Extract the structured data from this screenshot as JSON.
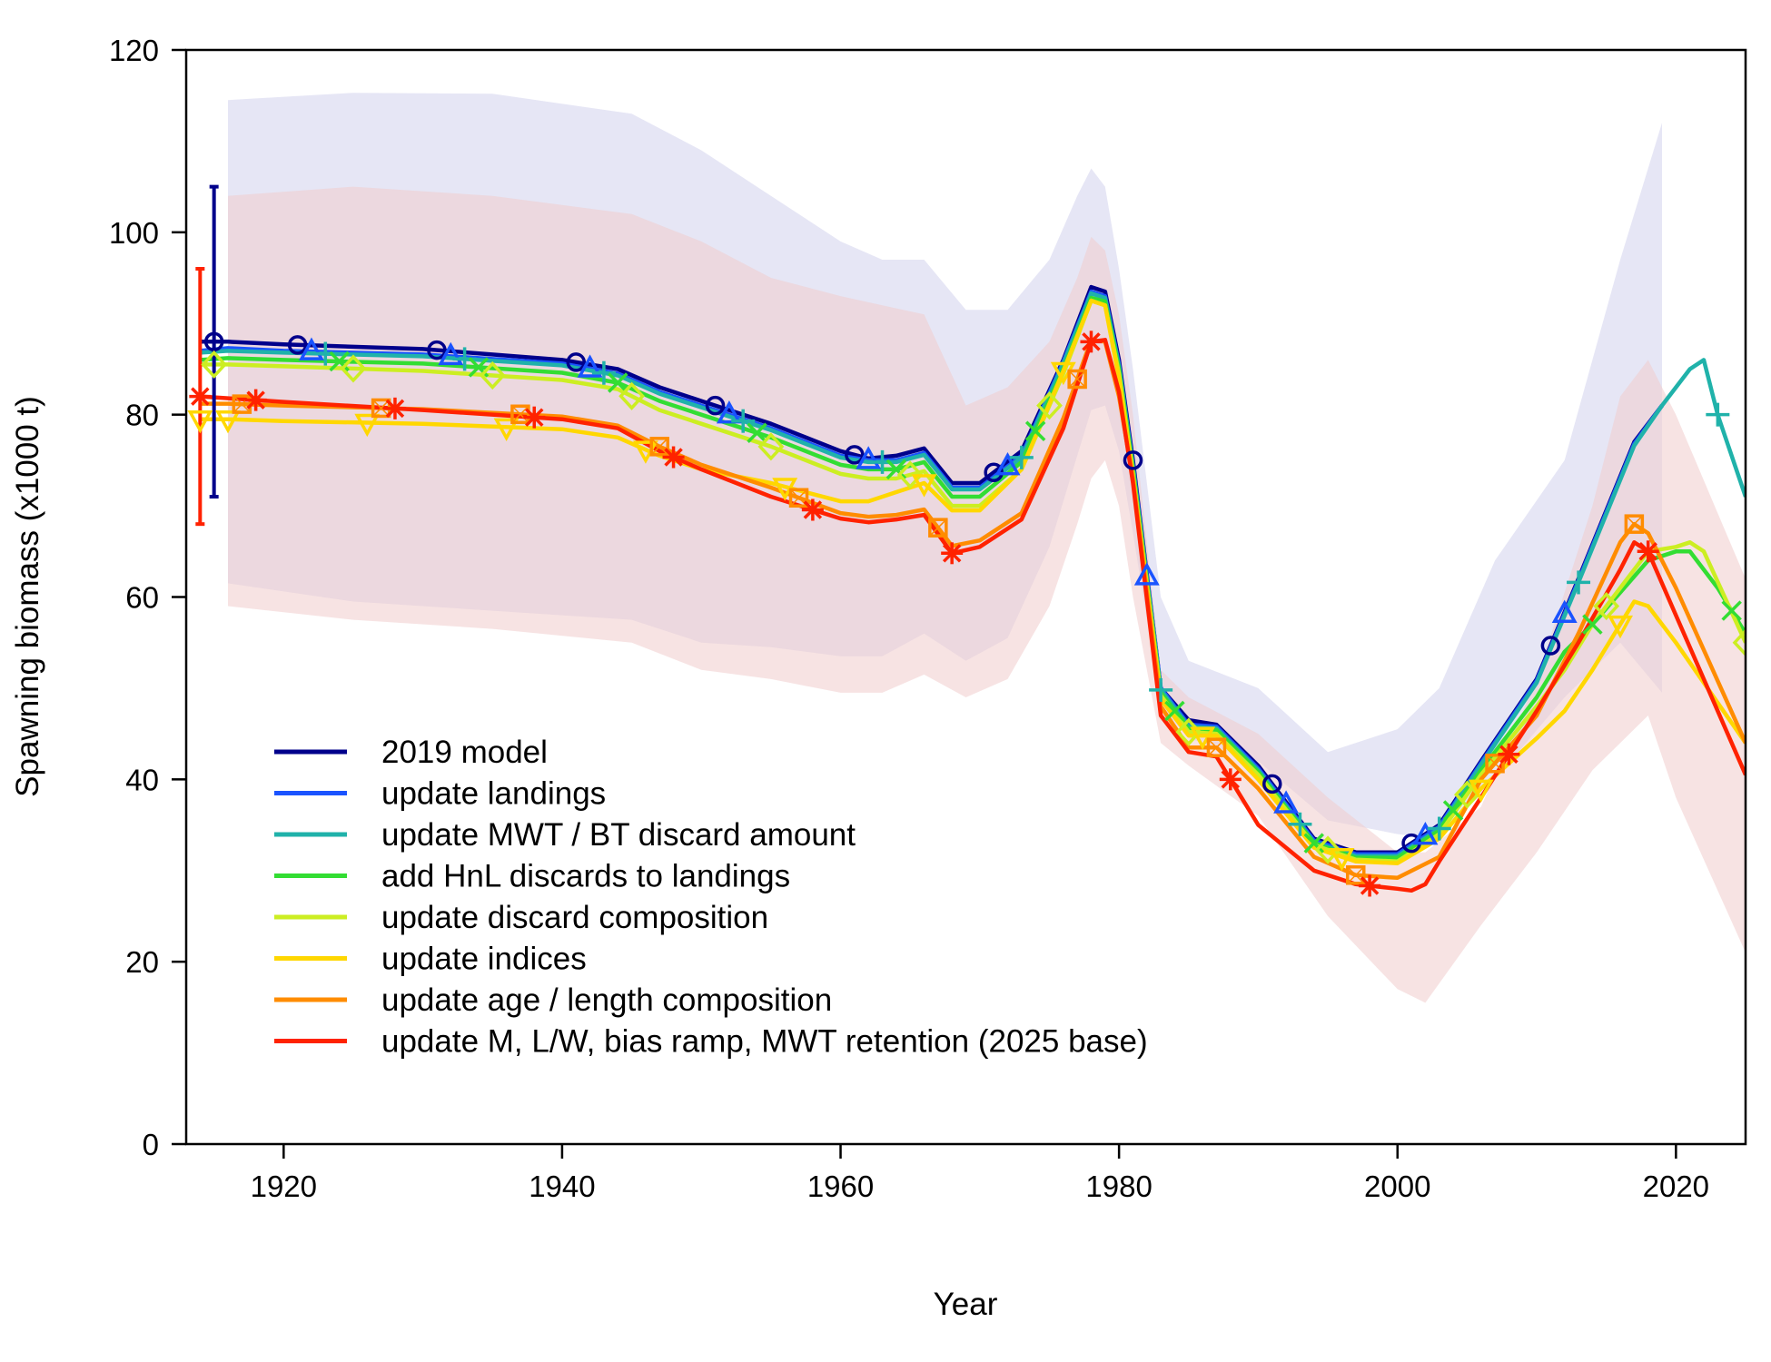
{
  "chart_data": {
    "type": "line",
    "xlabel": "Year",
    "ylabel": "Spawning biomass (x1000 t)",
    "xlim": [
      1913,
      2025
    ],
    "ylim": [
      0,
      120
    ],
    "x_ticks": [
      1920,
      1940,
      1960,
      1980,
      2000,
      2020
    ],
    "y_ticks": [
      0,
      20,
      40,
      60,
      80,
      100,
      120
    ],
    "grid": false,
    "legend_position": "bottom-left",
    "bands": [
      {
        "name": "2019 model",
        "color": "#e6e6f5",
        "x": [
          1916,
          1925,
          1935,
          1945,
          1950,
          1955,
          1960,
          1963,
          1966,
          1969,
          1972,
          1975,
          1977,
          1978,
          1979,
          1980,
          1981,
          1983,
          1985,
          1990,
          1995,
          2000,
          2003,
          2007,
          2012,
          2016,
          2019
        ],
        "upper": [
          114.5,
          115.3,
          115.2,
          113,
          109,
          104,
          99,
          97,
          97,
          91.5,
          91.5,
          97,
          104,
          107,
          105,
          96,
          85,
          60,
          53,
          50,
          43,
          45.5,
          50,
          64,
          75,
          97,
          112
        ],
        "lower": [
          61.5,
          59.5,
          58.5,
          57.5,
          55,
          54.5,
          53.5,
          53.5,
          56,
          53,
          55.5,
          65.5,
          75.5,
          80.5,
          81,
          76,
          67,
          48,
          44.5,
          42,
          35.5,
          34,
          33.5,
          40,
          49,
          55,
          49.5
        ]
      },
      {
        "name": "update M, L/W, bias ramp, MWT retention (2025 base)",
        "color": "#f0cccc",
        "opacity": 0.55,
        "x": [
          1916,
          1925,
          1935,
          1945,
          1950,
          1955,
          1960,
          1963,
          1966,
          1969,
          1972,
          1975,
          1977,
          1978,
          1979,
          1980,
          1981,
          1983,
          1985,
          1990,
          1995,
          2000,
          2002,
          2006,
          2010,
          2014,
          2016,
          2018,
          2020,
          2025
        ],
        "upper": [
          104,
          105,
          104,
          102,
          99,
          95,
          93,
          92,
          91,
          81,
          83,
          88,
          95,
          99.5,
          98,
          91,
          80,
          52,
          49,
          45,
          38,
          32,
          32,
          37,
          51,
          70,
          82,
          86,
          80,
          62
        ],
        "lower": [
          59,
          57.5,
          56.5,
          55,
          52,
          51,
          49.5,
          49.5,
          51.5,
          49,
          51,
          59,
          68,
          73,
          75,
          70,
          60,
          44,
          41.5,
          36,
          25,
          17,
          15.5,
          24,
          32,
          41,
          44,
          47,
          38,
          21
        ]
      }
    ],
    "series": [
      {
        "name": "2019 model",
        "color": "#00008b",
        "marker": "circle",
        "x": [
          1914,
          1916,
          1920,
          1930,
          1940,
          1944,
          1947,
          1950,
          1955,
          1960,
          1962,
          1964,
          1966,
          1968,
          1970,
          1973,
          1976,
          1978,
          1979,
          1980,
          1981,
          1983,
          1985,
          1987,
          1990,
          1994,
          1997,
          2000,
          2003,
          2006,
          2010,
          2013,
          2017,
          2019
        ],
        "y": [
          88,
          88,
          87.7,
          87.2,
          86,
          85,
          83,
          81.5,
          79,
          76,
          75.2,
          75.5,
          76.3,
          72.5,
          72.5,
          76,
          86,
          94,
          93.5,
          86,
          75,
          50,
          46.5,
          46,
          41.5,
          33.5,
          32,
          32,
          35,
          42,
          51,
          62,
          77,
          81
        ],
        "mx": [
          1915,
          1921,
          1931,
          1941,
          1951,
          1961,
          1971,
          1981,
          1991,
          2001,
          2011
        ]
      },
      {
        "name": "update landings",
        "color": "#1a53ff",
        "marker": "triangle",
        "x": [
          1914,
          1916,
          1920,
          1930,
          1940,
          1944,
          1947,
          1950,
          1955,
          1960,
          1962,
          1964,
          1966,
          1968,
          1970,
          1973,
          1976,
          1978,
          1979,
          1980,
          1981,
          1983,
          1985,
          1987,
          1990,
          1994,
          1997,
          2000,
          2003,
          2006,
          2010,
          2013,
          2017,
          2019
        ],
        "y": [
          87,
          87.3,
          87,
          86.6,
          85.6,
          84.5,
          82.5,
          81,
          78.5,
          75.5,
          75,
          75,
          75.8,
          72,
          72,
          75.5,
          85.8,
          93.5,
          93,
          85.5,
          74.5,
          50,
          46,
          45.8,
          41.2,
          33.3,
          31.8,
          31.8,
          34.8,
          41.8,
          50.8,
          61.8,
          76.8,
          81
        ],
        "mx": [
          1922,
          1932,
          1942,
          1952,
          1962,
          1972,
          1982,
          1992,
          2002,
          2012,
          2022
        ]
      },
      {
        "name": "update MWT / BT discard amount",
        "color": "#20b2aa",
        "marker": "plus",
        "x": [
          1914,
          1916,
          1920,
          1930,
          1940,
          1944,
          1947,
          1950,
          1955,
          1960,
          1962,
          1964,
          1966,
          1968,
          1970,
          1973,
          1976,
          1978,
          1979,
          1980,
          1981,
          1983,
          1985,
          1987,
          1990,
          1994,
          1997,
          2000,
          2003,
          2006,
          2010,
          2013,
          2017,
          2019,
          2021,
          2022,
          2023,
          2025
        ],
        "y": [
          86.8,
          87,
          86.8,
          86.4,
          85.4,
          84.3,
          82.3,
          80.8,
          78.3,
          75.3,
          74.8,
          74.8,
          75.6,
          71.8,
          71.8,
          75.3,
          85.6,
          93.3,
          92.8,
          85.3,
          74.3,
          49.8,
          45.8,
          45.6,
          41,
          33.1,
          31.6,
          31.6,
          34.6,
          41.6,
          50.6,
          61.6,
          76.6,
          81,
          85,
          86,
          80,
          71
        ],
        "mx": [
          1923,
          1933,
          1943,
          1953,
          1963,
          1973,
          1983,
          1993,
          2003,
          2013,
          2023
        ]
      },
      {
        "name": "add HnL discards to landings",
        "color": "#33dd33",
        "marker": "cross",
        "x": [
          1914,
          1916,
          1920,
          1930,
          1940,
          1944,
          1947,
          1950,
          1955,
          1960,
          1962,
          1964,
          1966,
          1968,
          1970,
          1973,
          1976,
          1978,
          1979,
          1980,
          1981,
          1983,
          1985,
          1987,
          1990,
          1994,
          1997,
          2000,
          2003,
          2006,
          2010,
          2012,
          2014,
          2016,
          2018,
          2020,
          2021,
          2023,
          2025
        ],
        "y": [
          86,
          86.2,
          86,
          85.6,
          84.6,
          83.5,
          81.5,
          80,
          77.5,
          74.5,
          74,
          74,
          74.8,
          71,
          71,
          74.8,
          85,
          92.8,
          92.4,
          85,
          74,
          49.5,
          45.5,
          45.4,
          40.8,
          33,
          31.4,
          31.4,
          34.4,
          41,
          49,
          54,
          57,
          60.5,
          64,
          65,
          65,
          61,
          56
        ],
        "mx": [
          1924,
          1934,
          1944,
          1954,
          1964,
          1974,
          1984,
          1994,
          2004,
          2014,
          2024
        ]
      },
      {
        "name": "update discard composition",
        "color": "#ccee22",
        "marker": "diamond",
        "x": [
          1914,
          1916,
          1920,
          1930,
          1940,
          1944,
          1947,
          1950,
          1955,
          1960,
          1962,
          1964,
          1966,
          1968,
          1970,
          1973,
          1976,
          1978,
          1979,
          1980,
          1981,
          1983,
          1985,
          1987,
          1990,
          1994,
          1997,
          2000,
          2003,
          2006,
          2010,
          2012,
          2014,
          2016,
          2018,
          2020,
          2021,
          2022,
          2025
        ],
        "y": [
          85.5,
          85.5,
          85.3,
          84.8,
          83.8,
          82.8,
          80.5,
          79,
          76.5,
          73.5,
          73,
          73,
          73.8,
          70,
          70,
          74,
          84.5,
          92.5,
          92,
          84.5,
          73.5,
          49.2,
          45.2,
          45,
          40.5,
          32.8,
          31.2,
          31,
          34,
          40.5,
          48,
          52,
          57,
          61,
          65,
          65.5,
          66,
          65,
          55
        ],
        "mx": [
          1915,
          1925,
          1935,
          1945,
          1955,
          1965,
          1975,
          1985,
          1995,
          2005,
          2015,
          2025
        ]
      },
      {
        "name": "update indices",
        "color": "#ffd700",
        "marker": "triangle-down",
        "x": [
          1914,
          1916,
          1920,
          1930,
          1940,
          1944,
          1947,
          1950,
          1955,
          1960,
          1962,
          1964,
          1966,
          1968,
          1970,
          1973,
          1976,
          1978,
          1979,
          1980,
          1981,
          1983,
          1985,
          1987,
          1990,
          1994,
          1997,
          2000,
          2003,
          2006,
          2010,
          2012,
          2014,
          2016,
          2017,
          2018,
          2020,
          2025
        ],
        "y": [
          79.5,
          79.5,
          79.3,
          79,
          78.4,
          77.5,
          75.5,
          74,
          72.5,
          70.5,
          70.5,
          71.5,
          72.5,
          69.5,
          69.5,
          74,
          84.8,
          92.5,
          92,
          84,
          73.2,
          48.8,
          44.8,
          44.8,
          40,
          32.5,
          31,
          30.8,
          33.5,
          39,
          44.5,
          47.5,
          52,
          57,
          59.5,
          59,
          55,
          44
        ],
        "mx": [
          1914,
          1916,
          1926,
          1936,
          1946,
          1956,
          1966,
          1976,
          1986,
          1996,
          2006,
          2016
        ]
      },
      {
        "name": "update age / length composition",
        "color": "#ff8c00",
        "marker": "square",
        "x": [
          1914,
          1916,
          1920,
          1930,
          1940,
          1944,
          1947,
          1950,
          1955,
          1960,
          1962,
          1964,
          1966,
          1968,
          1970,
          1973,
          1976,
          1978,
          1979,
          1980,
          1981,
          1983,
          1985,
          1987,
          1990,
          1994,
          1997,
          2000,
          2003,
          2006,
          2010,
          2013,
          2016,
          2017,
          2018,
          2020,
          2025
        ],
        "y": [
          81.2,
          81.2,
          81,
          80.6,
          79.8,
          78.8,
          76.5,
          74.5,
          72,
          69.2,
          68.8,
          69,
          69.6,
          65.6,
          66.2,
          69.2,
          79.6,
          88.2,
          88,
          82,
          73,
          48,
          43.5,
          43.5,
          39,
          31.5,
          29.5,
          29.2,
          31.5,
          40,
          47,
          56,
          66,
          68,
          67,
          61,
          44
        ],
        "mx": [
          1917,
          1927,
          1937,
          1947,
          1957,
          1967,
          1977,
          1987,
          1997,
          2007,
          2017
        ]
      },
      {
        "name": "update M, L/W, bias ramp, MWT retention (2025 base)",
        "color": "#ff2200",
        "marker": "asterisk",
        "x": [
          1914,
          1916,
          1920,
          1930,
          1940,
          1944,
          1947,
          1950,
          1955,
          1960,
          1962,
          1964,
          1966,
          1968,
          1970,
          1973,
          1976,
          1978,
          1979,
          1980,
          1981,
          1983,
          1985,
          1987,
          1990,
          1994,
          1997,
          2000,
          2001,
          2002,
          2003,
          2006,
          2010,
          2013,
          2016,
          2017,
          2018,
          2020,
          2025
        ],
        "y": [
          82,
          81.8,
          81.4,
          80.5,
          79.5,
          78.5,
          76,
          74,
          71,
          68.6,
          68.2,
          68.5,
          69,
          64.8,
          65.5,
          68.5,
          78.5,
          88,
          88.2,
          82.5,
          72.5,
          47,
          43,
          42.5,
          35,
          30,
          28.5,
          28,
          27.8,
          28.5,
          31,
          38,
          47.5,
          55,
          63,
          66,
          65,
          58,
          40.5
        ],
        "mx": [
          1914,
          1918,
          1928,
          1938,
          1948,
          1958,
          1968,
          1978,
          1988,
          1998,
          2008,
          2018
        ]
      }
    ],
    "error_bars": [
      {
        "series": "2019 model",
        "x": 1915,
        "low": 71,
        "high": 105,
        "color": "#00008b"
      },
      {
        "series": "update M, L/W, bias ramp, MWT retention (2025 base)",
        "x": 1914,
        "low": 68,
        "high": 96,
        "color": "#ff2200"
      }
    ]
  }
}
